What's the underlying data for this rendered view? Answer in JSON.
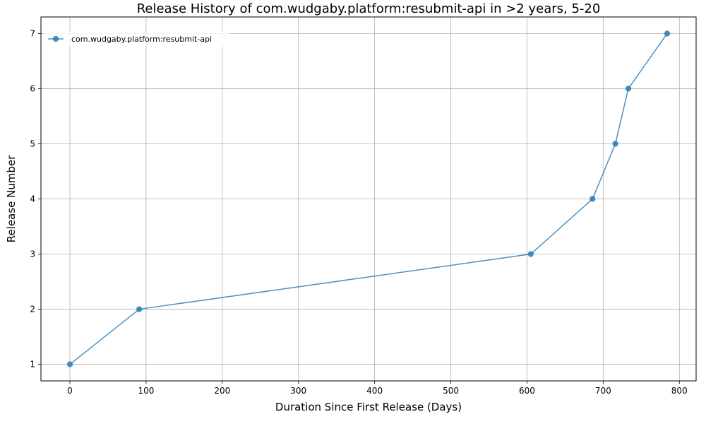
{
  "chart_data": {
    "type": "line",
    "title": "Release History of com.wudgaby.platform:resubmit-api in >2 years, 5-20",
    "xlabel": "Duration Since First Release (Days)",
    "ylabel": "Release Number",
    "xlim": [
      -38,
      822
    ],
    "ylim": [
      0.7,
      7.3
    ],
    "xticks": [
      0,
      100,
      200,
      300,
      400,
      500,
      600,
      700,
      800
    ],
    "yticks": [
      1,
      2,
      3,
      4,
      5,
      6,
      7
    ],
    "grid": true,
    "legend_position": "top-left",
    "series": [
      {
        "name": "com.wudgaby.platform:resubmit-api",
        "color": "#1f77b4",
        "x": [
          0,
          91,
          605,
          686,
          716,
          733,
          784
        ],
        "y": [
          1,
          2,
          3,
          4,
          5,
          6,
          7
        ]
      }
    ]
  }
}
